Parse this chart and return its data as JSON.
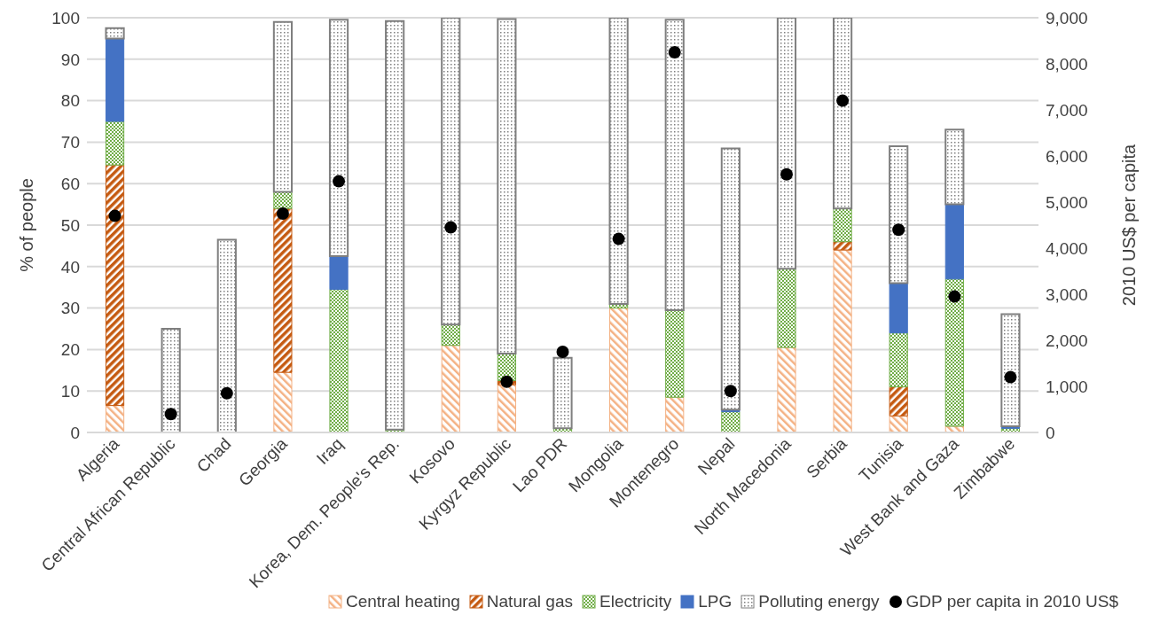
{
  "chart_data": {
    "type": "bar",
    "stacked": true,
    "ylabel": "% of people",
    "y2label": "2010 US$ per capita",
    "categories": [
      "Algeria",
      "Central African Republic",
      "Chad",
      "Georgia",
      "Iraq",
      "Korea, Dem. People's Rep.",
      "Kosovo",
      "Kyrgyz Republic",
      "Lao PDR",
      "Mongolia",
      "Montenegro",
      "Nepal",
      "North Macedonia",
      "Serbia",
      "Tunisia",
      "West Bank and Gaza",
      "Zimbabwe"
    ],
    "series": [
      {
        "name": "Central heating",
        "color": "#f4b183",
        "values": [
          6.5,
          0,
          0,
          14.5,
          0,
          null,
          21,
          11.5,
          0,
          30,
          8.5,
          0,
          20.5,
          44,
          4,
          1.5,
          0
        ]
      },
      {
        "name": "Natural gas",
        "color": "#c55a11",
        "values": [
          58,
          0,
          0,
          39.5,
          0,
          0,
          0,
          1,
          0,
          0,
          0,
          0,
          0,
          2,
          7,
          0,
          0
        ]
      },
      {
        "name": "Electricity",
        "color": "#70ad47",
        "values": [
          10.5,
          0,
          0,
          4,
          34.5,
          0.7,
          5,
          6.5,
          1,
          1,
          21,
          5,
          19,
          8,
          13,
          35.5,
          1
        ]
      },
      {
        "name": "LPG",
        "color": "#4472c4",
        "values": [
          20,
          0,
          0,
          0,
          8,
          null,
          0,
          null,
          0,
          0,
          0,
          0.5,
          0,
          0,
          12,
          18,
          0.5
        ]
      },
      {
        "name": "Polluting energy",
        "color": "#7f7f7f",
        "values": [
          2.5,
          25,
          46.5,
          41,
          57,
          98.5,
          74,
          80.7,
          17,
          69,
          70,
          63,
          60.5,
          46,
          33,
          18,
          27
        ]
      },
      {
        "name": "GDP per capita in 2010 US$",
        "type": "scatter",
        "axis": "y2",
        "color": "#000000",
        "marker": "circle",
        "values": [
          4700,
          400,
          850,
          4750,
          5450,
          null,
          4450,
          1100,
          1750,
          4200,
          8250,
          900,
          5600,
          7200,
          4400,
          2950,
          1200
        ]
      }
    ],
    "ylim": [
      0,
      100
    ],
    "yticks": [
      0,
      10,
      20,
      30,
      40,
      50,
      60,
      70,
      80,
      90,
      100
    ],
    "y2lim": [
      0,
      9000
    ],
    "y2ticks": [
      0,
      {
        "value": 1000,
        "label": "1,000"
      },
      {
        "value": 2000,
        "label": "2,000"
      },
      {
        "value": 3000,
        "label": "3,000"
      },
      {
        "value": 4000,
        "label": "4,000"
      },
      {
        "value": 5000,
        "label": "5,000"
      },
      {
        "value": 6000,
        "label": "6,000"
      },
      {
        "value": 7000,
        "label": "7,000"
      },
      {
        "value": 8000,
        "label": "8,000"
      },
      {
        "value": 9000,
        "label": "9,000"
      }
    ],
    "grid": "y",
    "legend": "bottom"
  }
}
